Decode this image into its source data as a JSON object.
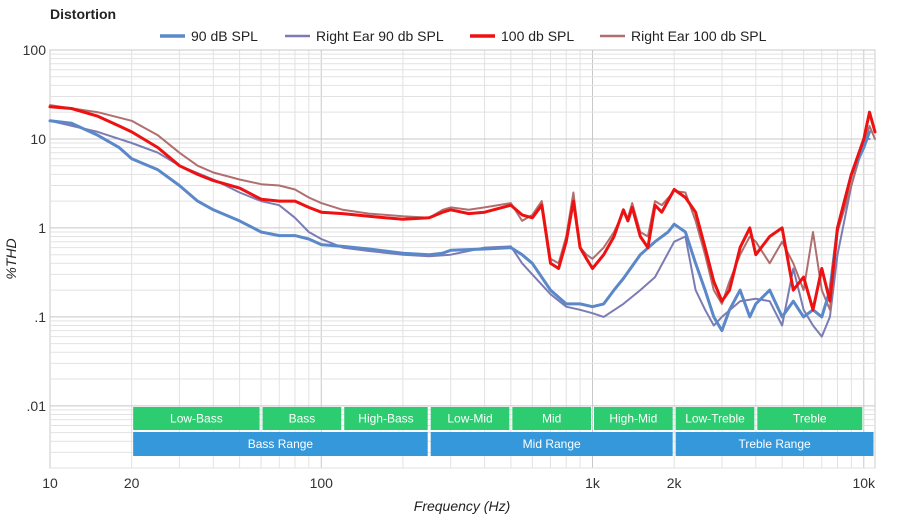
{
  "chart_data": {
    "type": "line",
    "title": "Distortion",
    "xlabel": "Frequency (Hz)",
    "ylabel": "%THD",
    "x_scale": "log",
    "y_scale": "log",
    "xlim": [
      10,
      11000
    ],
    "ylim": [
      0.002,
      100
    ],
    "grid": true,
    "legend_position": "top",
    "x_ticks": [
      {
        "value": 10,
        "label": "10"
      },
      {
        "value": 20,
        "label": "20"
      },
      {
        "value": 100,
        "label": "100"
      },
      {
        "value": 1000,
        "label": "1k"
      },
      {
        "value": 2000,
        "label": "2k"
      },
      {
        "value": 10000,
        "label": "10k"
      }
    ],
    "y_ticks": [
      {
        "value": 100,
        "label": "100"
      },
      {
        "value": 10,
        "label": "10"
      },
      {
        "value": 1,
        "label": "1"
      },
      {
        "value": 0.1,
        "label": ".1"
      },
      {
        "value": 0.01,
        "label": ".01"
      }
    ],
    "series": [
      {
        "name": "90 dB SPL",
        "color": "#5b88c8",
        "width": 3,
        "points": [
          [
            10,
            16
          ],
          [
            12,
            15
          ],
          [
            15,
            11
          ],
          [
            18,
            8
          ],
          [
            20,
            6
          ],
          [
            25,
            4.5
          ],
          [
            30,
            3
          ],
          [
            35,
            2
          ],
          [
            40,
            1.6
          ],
          [
            50,
            1.2
          ],
          [
            60,
            0.9
          ],
          [
            70,
            0.82
          ],
          [
            80,
            0.82
          ],
          [
            90,
            0.75
          ],
          [
            100,
            0.65
          ],
          [
            120,
            0.62
          ],
          [
            150,
            0.58
          ],
          [
            200,
            0.52
          ],
          [
            250,
            0.5
          ],
          [
            280,
            0.52
          ],
          [
            300,
            0.56
          ],
          [
            400,
            0.58
          ],
          [
            500,
            0.6
          ],
          [
            550,
            0.5
          ],
          [
            600,
            0.4
          ],
          [
            700,
            0.2
          ],
          [
            800,
            0.14
          ],
          [
            900,
            0.14
          ],
          [
            1000,
            0.13
          ],
          [
            1100,
            0.14
          ],
          [
            1200,
            0.2
          ],
          [
            1300,
            0.27
          ],
          [
            1500,
            0.5
          ],
          [
            1700,
            0.7
          ],
          [
            1900,
            0.9
          ],
          [
            2000,
            1.1
          ],
          [
            2200,
            0.9
          ],
          [
            2400,
            0.4
          ],
          [
            2600,
            0.2
          ],
          [
            2800,
            0.1
          ],
          [
            3000,
            0.07
          ],
          [
            3200,
            0.12
          ],
          [
            3500,
            0.2
          ],
          [
            3800,
            0.1
          ],
          [
            4000,
            0.14
          ],
          [
            4500,
            0.2
          ],
          [
            5000,
            0.1
          ],
          [
            5500,
            0.15
          ],
          [
            6000,
            0.1
          ],
          [
            6500,
            0.12
          ],
          [
            7000,
            0.1
          ],
          [
            7500,
            0.2
          ],
          [
            8000,
            1
          ],
          [
            9000,
            4
          ],
          [
            10000,
            8
          ],
          [
            10500,
            12
          ]
        ]
      },
      {
        "name": "Right Ear 90 db SPL",
        "color": "#7c7cb4",
        "width": 2,
        "points": [
          [
            10,
            16
          ],
          [
            15,
            12
          ],
          [
            20,
            9
          ],
          [
            25,
            7
          ],
          [
            30,
            5
          ],
          [
            40,
            3.5
          ],
          [
            50,
            2.5
          ],
          [
            60,
            2
          ],
          [
            70,
            1.8
          ],
          [
            80,
            1.3
          ],
          [
            90,
            0.9
          ],
          [
            100,
            0.75
          ],
          [
            120,
            0.6
          ],
          [
            150,
            0.55
          ],
          [
            200,
            0.5
          ],
          [
            250,
            0.48
          ],
          [
            300,
            0.5
          ],
          [
            400,
            0.6
          ],
          [
            500,
            0.62
          ],
          [
            550,
            0.4
          ],
          [
            600,
            0.3
          ],
          [
            700,
            0.18
          ],
          [
            800,
            0.13
          ],
          [
            900,
            0.12
          ],
          [
            1000,
            0.11
          ],
          [
            1100,
            0.1
          ],
          [
            1300,
            0.14
          ],
          [
            1500,
            0.2
          ],
          [
            1700,
            0.28
          ],
          [
            2000,
            0.7
          ],
          [
            2200,
            0.8
          ],
          [
            2400,
            0.2
          ],
          [
            2600,
            0.12
          ],
          [
            2800,
            0.08
          ],
          [
            3000,
            0.1
          ],
          [
            3500,
            0.15
          ],
          [
            4000,
            0.16
          ],
          [
            4500,
            0.15
          ],
          [
            5000,
            0.08
          ],
          [
            5500,
            0.35
          ],
          [
            6000,
            0.12
          ],
          [
            6500,
            0.08
          ],
          [
            7000,
            0.06
          ],
          [
            7500,
            0.1
          ],
          [
            8000,
            0.5
          ],
          [
            9000,
            3
          ],
          [
            10000,
            10
          ],
          [
            10500,
            10
          ]
        ]
      },
      {
        "name": "100 db SPL",
        "color": "#ee1111",
        "width": 3,
        "points": [
          [
            10,
            23
          ],
          [
            12,
            22
          ],
          [
            15,
            18
          ],
          [
            18,
            14
          ],
          [
            20,
            12
          ],
          [
            25,
            8
          ],
          [
            30,
            5
          ],
          [
            35,
            4
          ],
          [
            40,
            3.4
          ],
          [
            50,
            2.8
          ],
          [
            60,
            2.1
          ],
          [
            70,
            2
          ],
          [
            80,
            2
          ],
          [
            90,
            1.7
          ],
          [
            100,
            1.5
          ],
          [
            120,
            1.45
          ],
          [
            150,
            1.35
          ],
          [
            200,
            1.25
          ],
          [
            250,
            1.3
          ],
          [
            280,
            1.5
          ],
          [
            300,
            1.6
          ],
          [
            350,
            1.45
          ],
          [
            400,
            1.5
          ],
          [
            500,
            1.8
          ],
          [
            550,
            1.4
          ],
          [
            600,
            1.3
          ],
          [
            650,
            1.8
          ],
          [
            700,
            0.4
          ],
          [
            750,
            0.35
          ],
          [
            800,
            0.7
          ],
          [
            850,
            2
          ],
          [
            900,
            0.6
          ],
          [
            950,
            0.45
          ],
          [
            1000,
            0.35
          ],
          [
            1100,
            0.5
          ],
          [
            1200,
            0.8
          ],
          [
            1300,
            1.6
          ],
          [
            1350,
            1.2
          ],
          [
            1400,
            1.7
          ],
          [
            1500,
            0.8
          ],
          [
            1600,
            0.6
          ],
          [
            1700,
            1.8
          ],
          [
            1800,
            1.5
          ],
          [
            2000,
            2.7
          ],
          [
            2200,
            2.2
          ],
          [
            2400,
            1.5
          ],
          [
            2600,
            0.6
          ],
          [
            2800,
            0.25
          ],
          [
            3000,
            0.15
          ],
          [
            3200,
            0.2
          ],
          [
            3500,
            0.6
          ],
          [
            3800,
            1
          ],
          [
            4000,
            0.5
          ],
          [
            4500,
            0.8
          ],
          [
            5000,
            1
          ],
          [
            5500,
            0.2
          ],
          [
            6000,
            0.28
          ],
          [
            6500,
            0.12
          ],
          [
            7000,
            0.35
          ],
          [
            7500,
            0.15
          ],
          [
            8000,
            1
          ],
          [
            9000,
            4
          ],
          [
            10000,
            10
          ],
          [
            10500,
            20
          ],
          [
            11000,
            12
          ]
        ]
      },
      {
        "name": "Right Ear 100 db SPL",
        "color": "#b06f6f",
        "width": 2,
        "points": [
          [
            10,
            24
          ],
          [
            15,
            20
          ],
          [
            20,
            16
          ],
          [
            25,
            11
          ],
          [
            30,
            7
          ],
          [
            35,
            5
          ],
          [
            40,
            4.2
          ],
          [
            50,
            3.5
          ],
          [
            60,
            3.1
          ],
          [
            70,
            3
          ],
          [
            80,
            2.7
          ],
          [
            90,
            2.2
          ],
          [
            100,
            1.9
          ],
          [
            120,
            1.6
          ],
          [
            150,
            1.45
          ],
          [
            200,
            1.35
          ],
          [
            250,
            1.3
          ],
          [
            280,
            1.6
          ],
          [
            300,
            1.7
          ],
          [
            350,
            1.6
          ],
          [
            400,
            1.7
          ],
          [
            500,
            1.9
          ],
          [
            550,
            1.2
          ],
          [
            600,
            1.4
          ],
          [
            650,
            2
          ],
          [
            700,
            0.45
          ],
          [
            750,
            0.4
          ],
          [
            800,
            0.8
          ],
          [
            850,
            2.5
          ],
          [
            900,
            0.6
          ],
          [
            950,
            0.5
          ],
          [
            1000,
            0.45
          ],
          [
            1100,
            0.6
          ],
          [
            1200,
            0.9
          ],
          [
            1300,
            1.5
          ],
          [
            1350,
            1.3
          ],
          [
            1400,
            1.9
          ],
          [
            1500,
            0.9
          ],
          [
            1600,
            0.8
          ],
          [
            1700,
            2
          ],
          [
            1800,
            1.8
          ],
          [
            2000,
            2.6
          ],
          [
            2200,
            2.5
          ],
          [
            2400,
            1.2
          ],
          [
            2600,
            0.5
          ],
          [
            2800,
            0.2
          ],
          [
            3000,
            0.14
          ],
          [
            3200,
            0.25
          ],
          [
            3500,
            0.5
          ],
          [
            3800,
            0.8
          ],
          [
            4000,
            0.7
          ],
          [
            4500,
            0.4
          ],
          [
            5000,
            0.7
          ],
          [
            5500,
            0.4
          ],
          [
            6000,
            0.2
          ],
          [
            6500,
            0.9
          ],
          [
            7000,
            0.2
          ],
          [
            7500,
            0.12
          ],
          [
            8000,
            0.9
          ],
          [
            9000,
            3
          ],
          [
            10000,
            9
          ],
          [
            10500,
            14
          ],
          [
            11000,
            10
          ]
        ]
      }
    ],
    "bands": [
      {
        "label": "Low-Bass",
        "from": 20,
        "to": 60,
        "row": 1,
        "color": "#2ecc71"
      },
      {
        "label": "Bass",
        "from": 60,
        "to": 120,
        "row": 1,
        "color": "#2ecc71"
      },
      {
        "label": "High-Bass",
        "from": 120,
        "to": 250,
        "row": 1,
        "color": "#2ecc71"
      },
      {
        "label": "Low-Mid",
        "from": 250,
        "to": 500,
        "row": 1,
        "color": "#2ecc71"
      },
      {
        "label": "Mid",
        "from": 500,
        "to": 1000,
        "row": 1,
        "color": "#2ecc71"
      },
      {
        "label": "High-Mid",
        "from": 1000,
        "to": 2000,
        "row": 1,
        "color": "#2ecc71"
      },
      {
        "label": "Low-Treble",
        "from": 2000,
        "to": 4000,
        "row": 1,
        "color": "#2ecc71"
      },
      {
        "label": "Treble",
        "from": 4000,
        "to": 10000,
        "row": 1,
        "color": "#2ecc71"
      },
      {
        "label": "Bass Range",
        "from": 20,
        "to": 250,
        "row": 2,
        "color": "#3498db"
      },
      {
        "label": "Mid Range",
        "from": 250,
        "to": 2000,
        "row": 2,
        "color": "#3498db"
      },
      {
        "label": "Treble Range",
        "from": 2000,
        "to": 11000,
        "row": 2,
        "color": "#3498db"
      }
    ]
  }
}
